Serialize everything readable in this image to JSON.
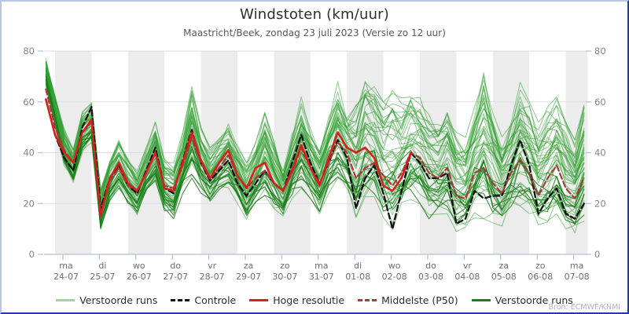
{
  "legend": {
    "items": [
      {
        "label": "Verstoorde runs",
        "color": "#a9cfa4",
        "style": "solid"
      },
      {
        "label": "Controle",
        "color": "#111111",
        "style": "dashed"
      },
      {
        "label": "Hoge resolutie",
        "color": "#d42020",
        "style": "solid"
      },
      {
        "label": "Middelste (P50)",
        "color": "#a43a3a",
        "style": "dashed"
      },
      {
        "label": "Verstoorde runs",
        "color": "#1b7e1b",
        "style": "solid"
      }
    ]
  },
  "source": {
    "credit": "Bron: ECMWF/KNMI"
  },
  "chart_data": {
    "type": "line",
    "title": "Windstoten (km/uur)",
    "subtitle": "Maastricht/Beek, zondag 23 juli 2023 (Versie zo 12 uur)",
    "ylim": [
      0,
      80
    ],
    "yticks": [
      0,
      20,
      40,
      60,
      80
    ],
    "grid": true,
    "band_color": "#ececec",
    "axis_color": "#b3c0da",
    "tick_label_color": "#6f6f6f",
    "ytick_label_color": "#858585",
    "gridline_color": "#dedede",
    "x_start_hour": 6,
    "x_step_hours": 6,
    "x_end_hour": 360,
    "days": [
      {
        "weekday": "ma",
        "date": "24-07"
      },
      {
        "weekday": "di",
        "date": "25-07"
      },
      {
        "weekday": "wo",
        "date": "26-07"
      },
      {
        "weekday": "do",
        "date": "27-07"
      },
      {
        "weekday": "vr",
        "date": "28-07"
      },
      {
        "weekday": "za",
        "date": "29-07"
      },
      {
        "weekday": "zo",
        "date": "30-07"
      },
      {
        "weekday": "ma",
        "date": "31-07"
      },
      {
        "weekday": "di",
        "date": "01-08"
      },
      {
        "weekday": "wo",
        "date": "02-08"
      },
      {
        "weekday": "do",
        "date": "03-08"
      },
      {
        "weekday": "vr",
        "date": "04-08"
      },
      {
        "weekday": "za",
        "date": "05-08"
      },
      {
        "weekday": "zo",
        "date": "06-08"
      },
      {
        "weekday": "ma",
        "date": "07-08"
      }
    ],
    "series": [
      {
        "name": "Hoge resolutie",
        "color": "#d42020",
        "style": "solid",
        "width": 2.6,
        "values": [
          61,
          47,
          40,
          36,
          48,
          53,
          15,
          30,
          36,
          28,
          25,
          32,
          40,
          26,
          25,
          36,
          48,
          37,
          30,
          36,
          41,
          31,
          26,
          34,
          36,
          28,
          25,
          33,
          43,
          34,
          27,
          38,
          48,
          42,
          40,
          42,
          38,
          27,
          25,
          30,
          40,
          null,
          null,
          null,
          null,
          null,
          null,
          null,
          null,
          null,
          null,
          null,
          null,
          null,
          null,
          null,
          null,
          null,
          null,
          null
        ]
      },
      {
        "name": "Controle",
        "color": "#111111",
        "style": "dashed",
        "width": 2.3,
        "values": [
          61,
          47,
          38,
          33,
          50,
          58,
          18,
          30,
          35,
          27,
          24,
          33,
          42,
          26,
          24,
          37,
          49,
          36,
          29,
          33,
          37,
          28,
          23,
          28,
          33,
          28,
          25,
          36,
          47,
          36,
          28,
          36,
          45,
          38,
          18,
          30,
          35,
          24,
          10,
          25,
          40,
          36,
          30,
          30,
          32,
          12,
          14,
          25,
          22,
          23,
          23,
          35,
          45,
          35,
          16,
          22,
          26,
          16,
          14,
          20
        ]
      },
      {
        "name": "Middelste (P50)",
        "color": "#a43a3a",
        "style": "dashed",
        "width": 2.2,
        "values": [
          65,
          50,
          41,
          36,
          48,
          52,
          16,
          29,
          34,
          27,
          25,
          32,
          40,
          27,
          26,
          35,
          46,
          36,
          30,
          34,
          39,
          31,
          26,
          30,
          33,
          28,
          25,
          32,
          42,
          34,
          28,
          36,
          44,
          40,
          30,
          34,
          36,
          31,
          27,
          32,
          40,
          38,
          32,
          30,
          34,
          23,
          22,
          32,
          34,
          28,
          24,
          32,
          37,
          32,
          23,
          30,
          35,
          26,
          22,
          30
        ]
      }
    ],
    "ensemble": {
      "name": "Verstoorde runs",
      "color": "#2f9e2f",
      "dark_color": "#1b7e1b",
      "count": 50,
      "seed": 12,
      "env_min": [
        66,
        50,
        34,
        27,
        40,
        44,
        9,
        20,
        26,
        20,
        15,
        23,
        27,
        17,
        14,
        24,
        30,
        24,
        19,
        24,
        26,
        20,
        13,
        18,
        22,
        18,
        15,
        22,
        26,
        22,
        16,
        24,
        28,
        24,
        12,
        18,
        20,
        14,
        8,
        14,
        20,
        20,
        14,
        13,
        16,
        9,
        8,
        14,
        14,
        12,
        10,
        15,
        18,
        16,
        11,
        12,
        14,
        10,
        8,
        13
      ],
      "env_max": [
        78,
        64,
        50,
        42,
        56,
        60,
        26,
        38,
        45,
        38,
        33,
        42,
        52,
        38,
        36,
        48,
        66,
        50,
        42,
        46,
        52,
        44,
        36,
        44,
        57,
        45,
        34,
        48,
        62,
        50,
        42,
        55,
        68,
        58,
        60,
        72,
        68,
        60,
        68,
        62,
        65,
        62,
        55,
        52,
        58,
        48,
        46,
        58,
        74,
        60,
        48,
        55,
        68,
        60,
        52,
        58,
        62,
        52,
        45,
        62
      ]
    }
  }
}
